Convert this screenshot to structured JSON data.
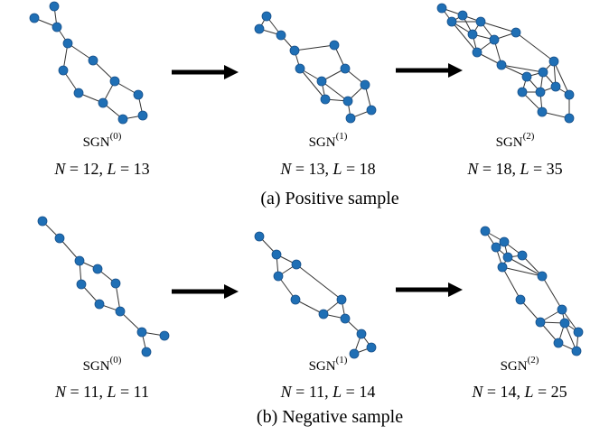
{
  "rows": [
    {
      "caption": "(a) Positive sample",
      "panels": [
        {
          "name": "SGN",
          "superscript": "(0)",
          "n_symbol": "N",
          "n_text": " = 12, ",
          "l_symbol": "L",
          "l_text": " = 13"
        },
        {
          "name": "SGN",
          "superscript": "(1)",
          "n_symbol": "N",
          "n_text": " = 13, ",
          "l_symbol": "L",
          "l_text": " = 18"
        },
        {
          "name": "SGN",
          "superscript": "(2)",
          "n_symbol": "N",
          "n_text": " = 18, ",
          "l_symbol": "L",
          "l_text": " = 35"
        }
      ]
    },
    {
      "caption": "(b) Negative sample",
      "panels": [
        {
          "name": "SGN",
          "superscript": "(0)",
          "n_symbol": "N",
          "n_text": " = 11, ",
          "l_symbol": "L",
          "l_text": " = 11"
        },
        {
          "name": "SGN",
          "superscript": "(1)",
          "n_symbol": "N",
          "n_text": " = 11, ",
          "l_symbol": "L",
          "l_text": " = 14"
        },
        {
          "name": "SGN",
          "superscript": "(2)",
          "n_symbol": "N",
          "n_text": " = 14, ",
          "l_symbol": "L",
          "l_text": " = 25"
        }
      ]
    }
  ]
}
